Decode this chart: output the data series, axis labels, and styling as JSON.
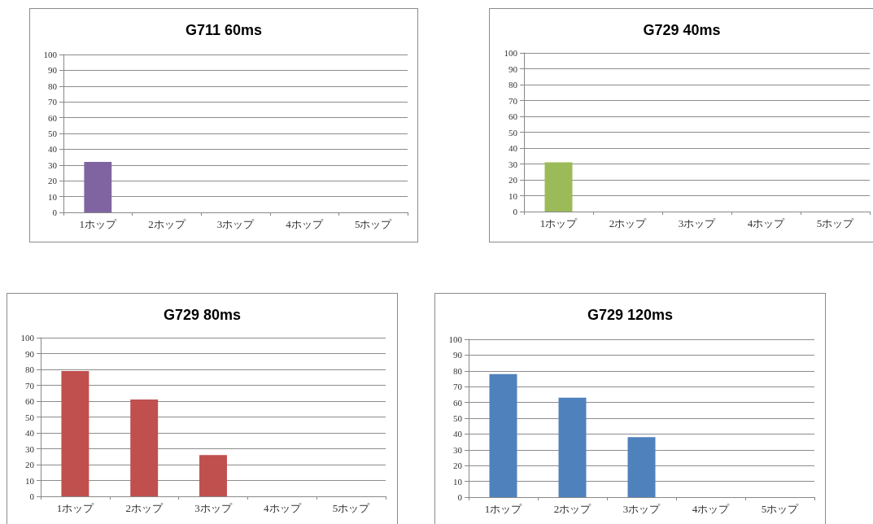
{
  "chart_data": [
    {
      "type": "bar",
      "title": "G711 60ms",
      "categories": [
        "1ホップ",
        "2ホップ",
        "3ホップ",
        "4ホップ",
        "5ホップ"
      ],
      "values": [
        32,
        0,
        0,
        0,
        0
      ],
      "color": "#8064a2",
      "ylim": [
        0,
        100
      ],
      "yticks": [
        0,
        10,
        20,
        30,
        40,
        50,
        60,
        70,
        80,
        90,
        100
      ],
      "grid": "y"
    },
    {
      "type": "bar",
      "title": "G729 40ms",
      "categories": [
        "1ホップ",
        "2ホップ",
        "3ホップ",
        "4ホップ",
        "5ホップ"
      ],
      "values": [
        31,
        0,
        0,
        0,
        0
      ],
      "color": "#9bbb59",
      "ylim": [
        0,
        100
      ],
      "yticks": [
        0,
        10,
        20,
        30,
        40,
        50,
        60,
        70,
        80,
        90,
        100
      ],
      "grid": "y"
    },
    {
      "type": "bar",
      "title": "G729 80ms",
      "categories": [
        "1ホップ",
        "2ホップ",
        "3ホップ",
        "4ホップ",
        "5ホップ"
      ],
      "values": [
        79,
        61,
        26,
        0,
        0
      ],
      "color": "#c0504d",
      "ylim": [
        0,
        100
      ],
      "yticks": [
        0,
        10,
        20,
        30,
        40,
        50,
        60,
        70,
        80,
        90,
        100
      ],
      "grid": "y"
    },
    {
      "type": "bar",
      "title": "G729 120ms",
      "categories": [
        "1ホップ",
        "2ホップ",
        "3ホップ",
        "4ホップ",
        "5ホップ"
      ],
      "values": [
        78,
        63,
        38,
        0,
        0
      ],
      "color": "#4f81bd",
      "ylim": [
        0,
        100
      ],
      "yticks": [
        0,
        10,
        20,
        30,
        40,
        50,
        60,
        70,
        80,
        90,
        100
      ],
      "grid": "y"
    }
  ]
}
